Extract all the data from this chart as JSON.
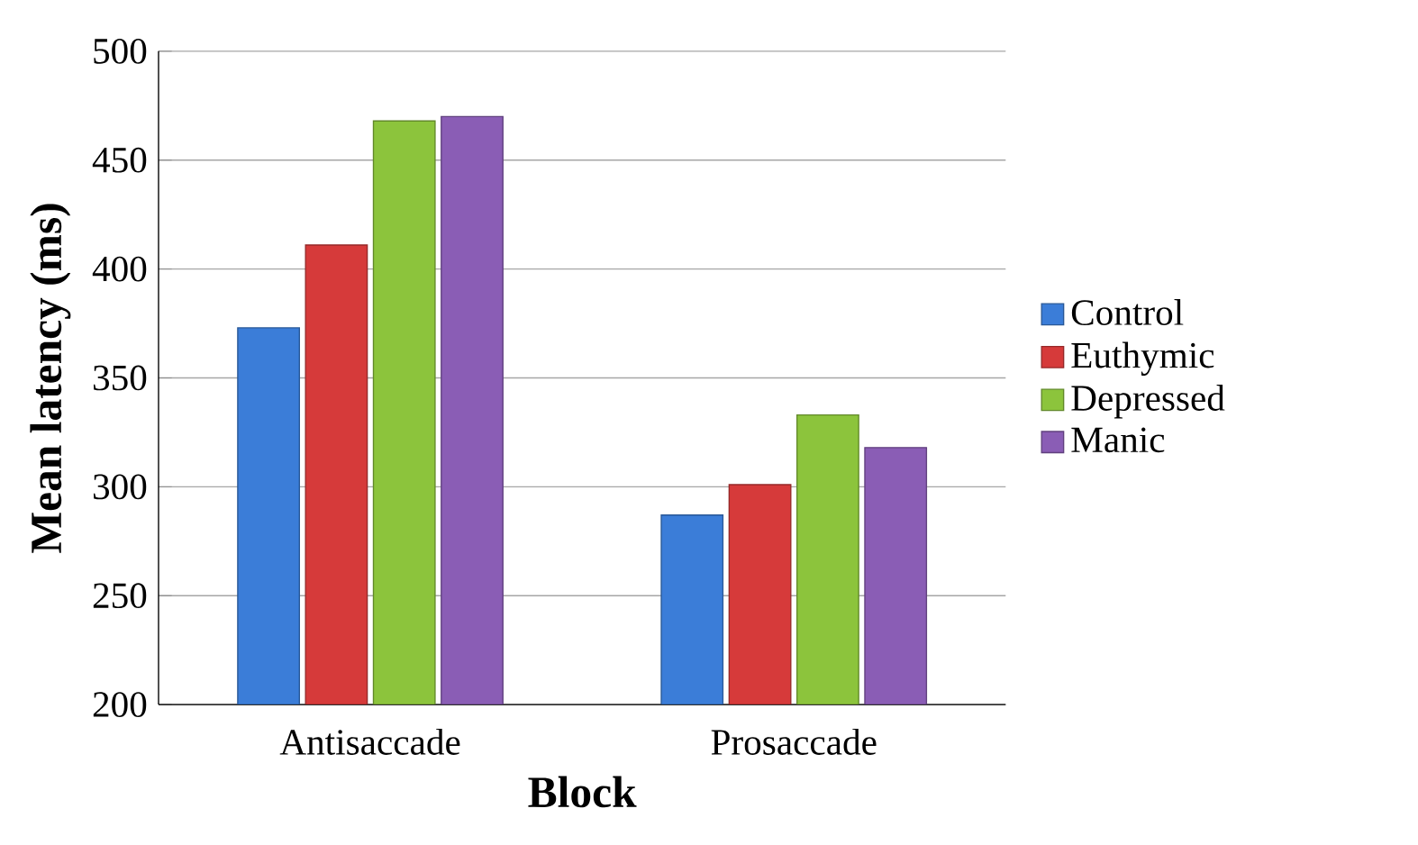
{
  "chart_data": {
    "type": "bar",
    "xlabel": "Block",
    "ylabel": "Mean latency (ms)",
    "categories": [
      "Antisaccade",
      "Prosaccade"
    ],
    "series": [
      {
        "name": "Control",
        "color": "#3b7dd8",
        "values": [
          373,
          287
        ]
      },
      {
        "name": "Euthymic",
        "color": "#d63a3a",
        "values": [
          411,
          301
        ]
      },
      {
        "name": "Depressed",
        "color": "#8cc43c",
        "values": [
          468,
          333
        ]
      },
      {
        "name": "Manic",
        "color": "#8a5db5",
        "values": [
          470,
          318
        ]
      }
    ],
    "ylim": [
      200,
      500
    ],
    "yticks": [
      200,
      250,
      300,
      350,
      400,
      450,
      500
    ],
    "grid": "y",
    "legend": "right"
  }
}
